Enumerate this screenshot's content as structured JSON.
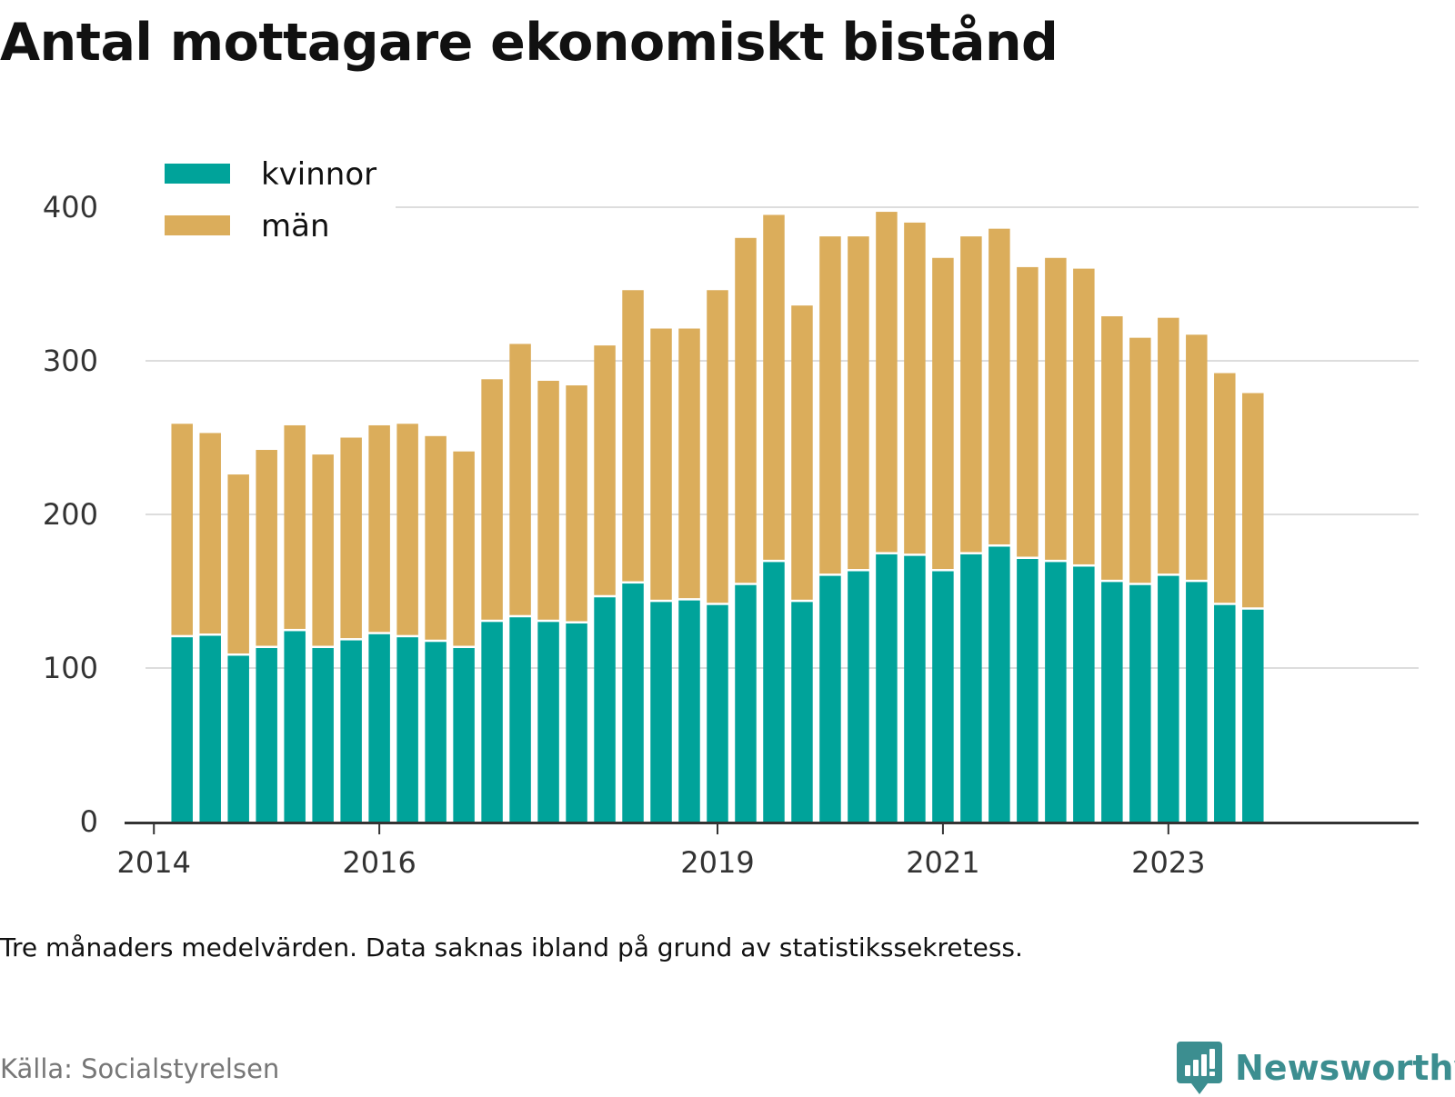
{
  "title": "Antal mottagare ekonomiskt bistånd",
  "note": "Tre månaders medelvärden. Data saknas ibland på grund av statistikssekretess.",
  "source": "Källa: Socialstyrelsen",
  "brand": "Newsworthy",
  "colors": {
    "kvinnor": "#00a39a",
    "man": "#dbad5b",
    "grid": "#dddddd",
    "axis": "#333333",
    "brand": "#3c8e90"
  },
  "chart_data": {
    "type": "bar",
    "stacked": true,
    "legend_position": "top-left",
    "grid": true,
    "ylim": [
      0,
      400
    ],
    "yticks": [
      "0",
      "100",
      "200",
      "300",
      "400"
    ],
    "xticks": [
      "2014",
      "2016",
      "2019",
      "2021",
      "2023"
    ],
    "xlim_years": [
      2013.74,
      2025.22
    ],
    "xtick_values": [
      2014.0,
      2016.0,
      2019.0,
      2021.0,
      2023.0
    ],
    "category_start": 2014.25,
    "category_step": 0.25,
    "categories": [
      "2014 Q2",
      "2014 Q3",
      "2014 Q4",
      "2015 Q1",
      "2015 Q2",
      "2015 Q3",
      "2015 Q4",
      "2016 Q1",
      "2016 Q2",
      "2016 Q3",
      "2016 Q4",
      "2017 Q1",
      "2017 Q2",
      "2017 Q3",
      "2017 Q4",
      "2018 Q1",
      "2018 Q2",
      "2018 Q3",
      "2018 Q4",
      "2019 Q1",
      "2019 Q2",
      "2019 Q3",
      "2019 Q4",
      "2020 Q1",
      "2020 Q2",
      "2020 Q3",
      "2020 Q4",
      "2021 Q1",
      "2021 Q2",
      "2021 Q3",
      "2021 Q4",
      "2022 Q1",
      "2022 Q2",
      "2022 Q3",
      "2022 Q4",
      "2023 Q1",
      "2023 Q2",
      "2023 Q3",
      "2023 Q4"
    ],
    "series": [
      {
        "name": "kvinnor",
        "values": [
          120,
          121,
          108,
          113,
          124,
          113,
          118,
          122,
          120,
          117,
          113,
          130,
          133,
          130,
          129,
          146,
          155,
          143,
          144,
          141,
          154,
          169,
          143,
          160,
          163,
          174,
          173,
          163,
          174,
          179,
          171,
          169,
          166,
          156,
          154,
          160,
          156,
          141,
          138
        ]
      },
      {
        "name": "män",
        "values": [
          139,
          132,
          118,
          129,
          134,
          126,
          132,
          136,
          139,
          134,
          128,
          158,
          178,
          157,
          155,
          164,
          191,
          178,
          177,
          205,
          226,
          226,
          193,
          221,
          218,
          223,
          217,
          204,
          207,
          207,
          190,
          198,
          194,
          173,
          161,
          168,
          161,
          151,
          141
        ]
      }
    ]
  }
}
